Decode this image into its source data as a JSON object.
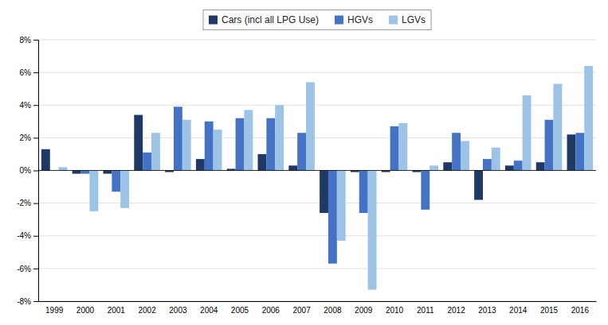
{
  "chart_data": {
    "type": "bar",
    "categories": [
      "1999",
      "2000",
      "2001",
      "2002",
      "2003",
      "2004",
      "2005",
      "2006",
      "2007",
      "2008",
      "2009",
      "2010",
      "2011",
      "2012",
      "2013",
      "2014",
      "2015",
      "2016"
    ],
    "series": [
      {
        "name": "Cars (incl all LPG Use)",
        "color": "#1F3864",
        "values": [
          1.3,
          -0.2,
          -0.2,
          3.4,
          -0.1,
          0.7,
          0.1,
          1.0,
          0.3,
          -2.6,
          -0.1,
          -0.1,
          -0.1,
          0.5,
          -1.8,
          0.3,
          0.5,
          2.2
        ]
      },
      {
        "name": "HGVs",
        "color": "#4472C4",
        "values": [
          0.0,
          -0.2,
          -1.3,
          1.1,
          3.9,
          3.0,
          3.2,
          3.2,
          2.3,
          -5.7,
          -2.6,
          2.7,
          -2.4,
          2.3,
          0.7,
          0.6,
          3.1,
          2.3
        ]
      },
      {
        "name": "LGVs",
        "color": "#9DC3E6",
        "values": [
          0.2,
          -2.5,
          -2.3,
          2.3,
          3.1,
          2.5,
          3.7,
          4.0,
          5.4,
          -4.3,
          -7.3,
          2.9,
          0.3,
          1.8,
          1.4,
          4.6,
          5.3,
          6.4
        ]
      }
    ],
    "ylim": [
      -8,
      8
    ],
    "yticks": [
      {
        "value": -8,
        "label": "-8%"
      },
      {
        "value": -6,
        "label": "-6%"
      },
      {
        "value": -4,
        "label": "-4%"
      },
      {
        "value": -2,
        "label": "-2%"
      },
      {
        "value": 0,
        "label": "0%"
      },
      {
        "value": 2,
        "label": "2%"
      },
      {
        "value": 4,
        "label": "4%"
      },
      {
        "value": 6,
        "label": "6%"
      },
      {
        "value": 8,
        "label": "8%"
      }
    ],
    "grid": true,
    "legend": "top"
  }
}
